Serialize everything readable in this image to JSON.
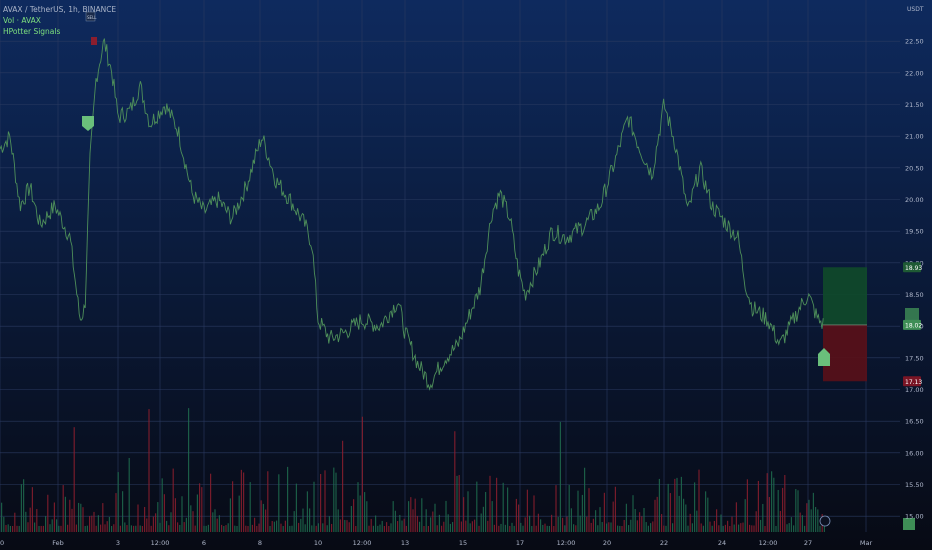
{
  "header": {
    "symbol_line": "AVAX / TetherUS, 1h, BINANCE",
    "vol_line": "Vol · AVAX",
    "indicator_line": "HPotter Signals",
    "currency": "USDT"
  },
  "colors": {
    "background_top": "#0e2a5e",
    "background_bottom": "#070a14",
    "grid": "#2a3a60",
    "price_line": "#4e8f5a",
    "volume_up": "#1e6b4e",
    "volume_down": "#8b1e2e",
    "tp_zone": "#0f4a2a",
    "sl_zone": "#5a0f18",
    "signal_marker": "#6abf7b",
    "axis_text": "#b0b8cc"
  },
  "markers": {
    "sell_label": "SELL",
    "buy_label": "BUY",
    "current_tag": "18.02",
    "tp_tag": "18.93",
    "sl_tag": "17.13"
  },
  "chart_data": {
    "type": "line",
    "title": "AVAX / TetherUS, 1h, BINANCE",
    "ylabel": "USDT",
    "ylim": [
      14.75,
      23.15
    ],
    "y_ticks": [
      15.0,
      15.5,
      16.0,
      16.5,
      17.0,
      17.5,
      18.0,
      18.5,
      19.0,
      19.5,
      20.0,
      20.5,
      21.0,
      21.5,
      22.0,
      22.5
    ],
    "x_ticks": [
      "30",
      "Feb",
      "3",
      "12:00",
      "6",
      "8",
      "10",
      "12:00",
      "13",
      "15",
      "17",
      "12:00",
      "20",
      "22",
      "24",
      "12:00",
      "27",
      "Mar"
    ],
    "series": [
      {
        "name": "AVAX",
        "x": [
          "30",
          "Feb",
          "3",
          "12:00",
          "6",
          "8",
          "10",
          "12:00",
          "13",
          "15",
          "17",
          "12:00",
          "20",
          "22",
          "24",
          "12:00",
          "27"
        ],
        "values": [
          20.9,
          19.5,
          22.5,
          21.3,
          19.8,
          21.0,
          18.0,
          18.3,
          17.1,
          18.1,
          20.0,
          19.5,
          20.4,
          21.5,
          19.8,
          17.9,
          18.2
        ]
      }
    ],
    "trade_zone": {
      "take_profit": 18.93,
      "entry": 18.02,
      "stop_loss": 17.13
    },
    "legend": "top-left",
    "grid": true
  }
}
